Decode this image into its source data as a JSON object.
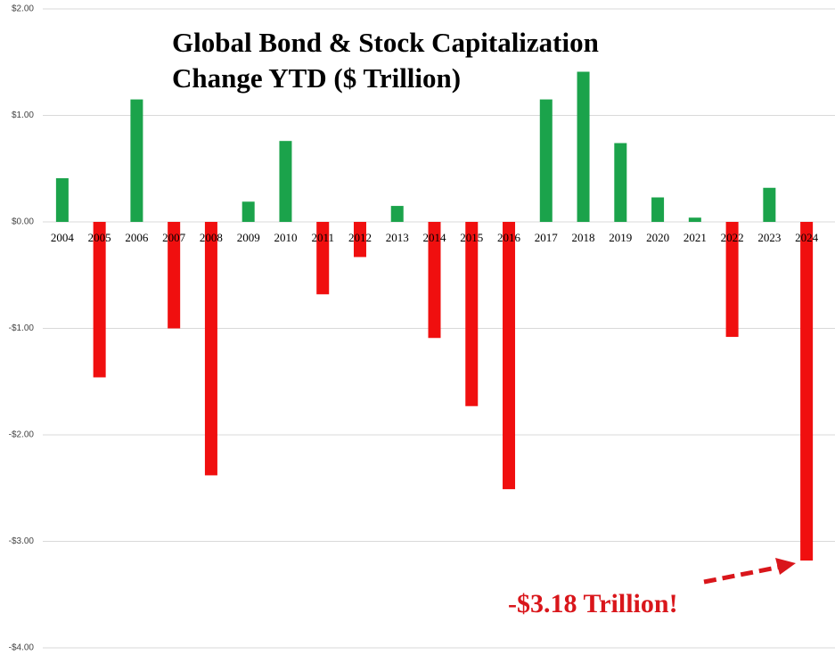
{
  "chart_data": {
    "type": "bar",
    "title": [
      "Global Bond & Stock Capitalization",
      "Change YTD ($ Trillion)"
    ],
    "annotation": "-$3.18 Trillion!",
    "categories": [
      "2004",
      "2005",
      "2006",
      "2007",
      "2008",
      "2009",
      "2010",
      "2011",
      "2012",
      "2013",
      "2014",
      "2015",
      "2016",
      "2017",
      "2018",
      "2019",
      "2020",
      "2021",
      "2022",
      "2023",
      "2024"
    ],
    "values": [
      0.41,
      -1.46,
      1.15,
      -1.0,
      -2.38,
      0.19,
      0.76,
      -0.68,
      -0.33,
      0.15,
      -1.09,
      -1.73,
      -2.51,
      1.15,
      1.41,
      0.74,
      0.23,
      0.04,
      -1.08,
      0.32,
      -3.18
    ],
    "positive_color": "#1ba34b",
    "negative_color": "#f00f0f",
    "ylim": [
      -4,
      2
    ],
    "yticks": [
      {
        "value": -4,
        "label": "-$4.00"
      },
      {
        "value": -3,
        "label": "-$3.00"
      },
      {
        "value": -2,
        "label": "-$2.00"
      },
      {
        "value": -1,
        "label": "-$1.00"
      },
      {
        "value": 0,
        "label": "$0.00"
      },
      {
        "value": 1,
        "label": "$1.00"
      },
      {
        "value": 2,
        "label": "$2.00"
      }
    ],
    "grid": true
  }
}
